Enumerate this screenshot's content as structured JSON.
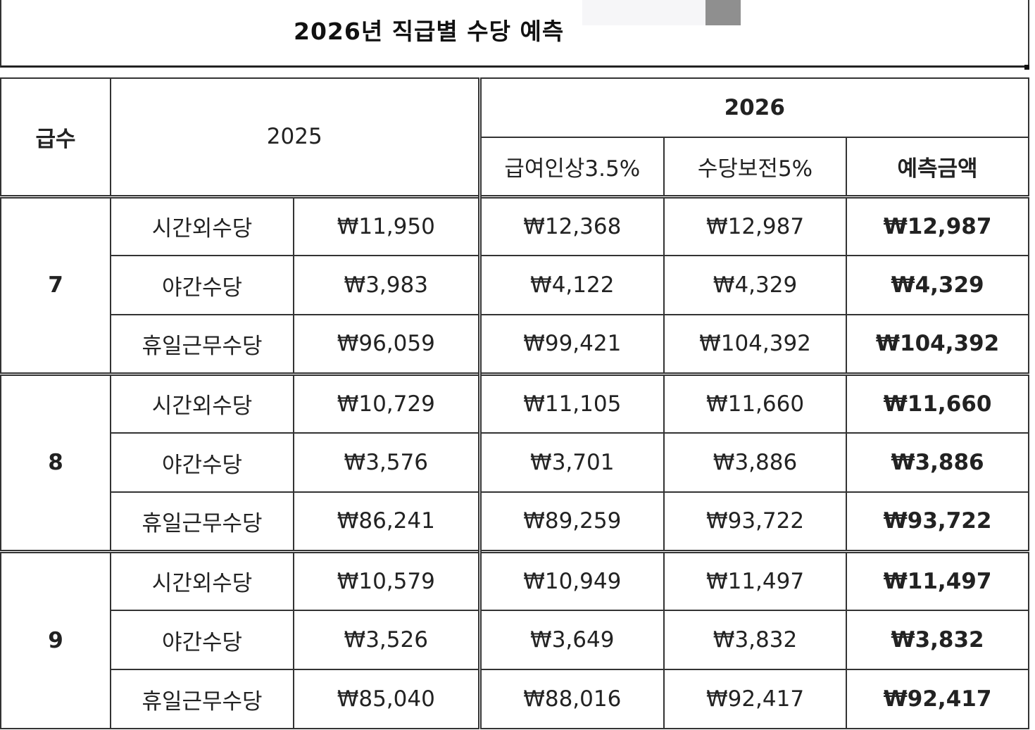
{
  "title": "2026년 직급별 수당 예측",
  "headers": {
    "grade": "급수",
    "year_2025": "2025",
    "year_2026": "2026",
    "raise": "급여인상3.5%",
    "keep": "수당보전5%",
    "predicted": "예측금액"
  },
  "groups": [
    {
      "grade": "7",
      "rows": [
        {
          "name": "시간외수당",
          "v2025": "₩11,950",
          "raise": "₩12,368",
          "keep": "₩12,987",
          "predicted": "₩12,987"
        },
        {
          "name": "야간수당",
          "v2025": "₩3,983",
          "raise": "₩4,122",
          "keep": "₩4,329",
          "predicted": "₩4,329"
        },
        {
          "name": "휴일근무수당",
          "v2025": "₩96,059",
          "raise": "₩99,421",
          "keep": "₩104,392",
          "predicted": "₩104,392"
        }
      ]
    },
    {
      "grade": "8",
      "rows": [
        {
          "name": "시간외수당",
          "v2025": "₩10,729",
          "raise": "₩11,105",
          "keep": "₩11,660",
          "predicted": "₩11,660"
        },
        {
          "name": "야간수당",
          "v2025": "₩3,576",
          "raise": "₩3,701",
          "keep": "₩3,886",
          "predicted": "₩3,886"
        },
        {
          "name": "휴일근무수당",
          "v2025": "₩86,241",
          "raise": "₩89,259",
          "keep": "₩93,722",
          "predicted": "₩93,722"
        }
      ]
    },
    {
      "grade": "9",
      "rows": [
        {
          "name": "시간외수당",
          "v2025": "₩10,579",
          "raise": "₩10,949",
          "keep": "₩11,497",
          "predicted": "₩11,497"
        },
        {
          "name": "야간수당",
          "v2025": "₩3,526",
          "raise": "₩3,649",
          "keep": "₩3,832",
          "predicted": "₩3,832"
        },
        {
          "name": "휴일근무수당",
          "v2025": "₩85,040",
          "raise": "₩88,016",
          "keep": "₩92,417",
          "predicted": "₩92,417"
        }
      ]
    }
  ]
}
